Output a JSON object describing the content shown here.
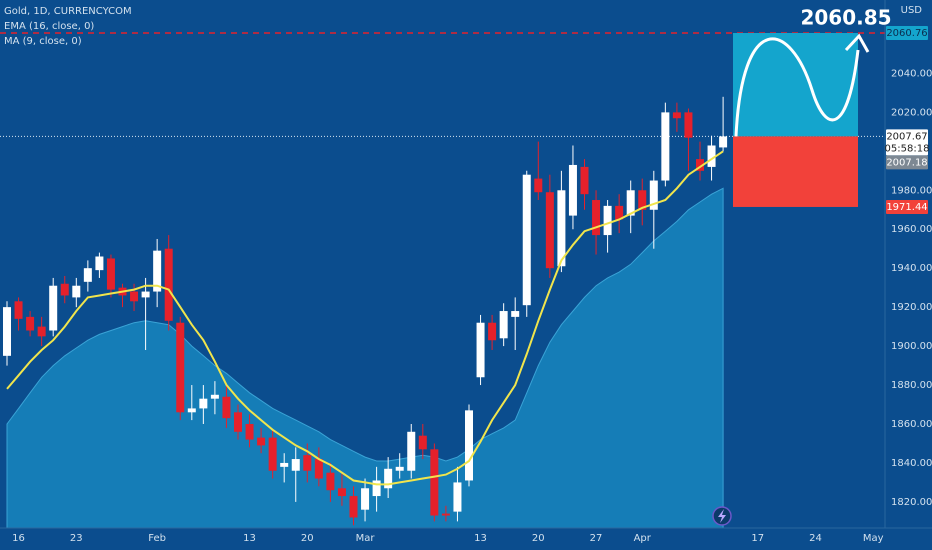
{
  "chart_data": {
    "type": "candlestick",
    "title": "Gold, 1D, CURRENCYCOM",
    "currency": "USD",
    "up_color": "#ffffff",
    "down_color": "#e5212b",
    "categories": [
      null,
      "16",
      null,
      null,
      null,
      null,
      "23",
      null,
      null,
      null,
      null,
      null,
      null,
      "Feb",
      null,
      null,
      null,
      null,
      null,
      null,
      null,
      "13",
      null,
      null,
      null,
      null,
      "20",
      null,
      null,
      null,
      null,
      "Mar",
      null,
      null,
      null,
      null,
      null,
      null,
      null,
      null,
      null,
      "13",
      null,
      null,
      null,
      null,
      "20",
      null,
      null,
      null,
      null,
      "27",
      null,
      null,
      null,
      "Apr",
      null,
      null,
      null,
      null,
      null,
      null,
      null,
      null,
      null,
      "17",
      null,
      null,
      null,
      null,
      "24",
      null,
      null,
      null,
      null,
      "May"
    ],
    "open": [
      1895,
      1923,
      1915,
      1910,
      1908,
      1932,
      1925,
      1933,
      1939,
      1945,
      1930,
      1928,
      1925,
      1928,
      1950,
      1912,
      1866,
      1868,
      1873,
      1874,
      1866,
      1860,
      1853,
      1853,
      1838,
      1836,
      1844,
      1842,
      1835,
      1827,
      1823,
      1816,
      1823,
      1827,
      1836,
      1836,
      1854,
      1847,
      1814,
      1815,
      1831,
      1884,
      1912,
      1904,
      1915,
      1921,
      1986,
      1979,
      1941,
      1967,
      1992,
      1975,
      1957,
      1972,
      1967,
      1980,
      1970,
      1985,
      2020,
      2020,
      1996,
      1992,
      2002,
      null,
      null,
      null,
      null,
      null,
      null,
      null,
      null,
      null,
      null,
      null,
      null,
      null
    ],
    "high": [
      1923,
      1925,
      1918,
      1915,
      1935,
      1936,
      1935,
      1944,
      1948,
      1947,
      1932,
      1932,
      1935,
      1955,
      1957,
      1915,
      1880,
      1880,
      1882,
      1880,
      1870,
      1865,
      1858,
      1857,
      1845,
      1848,
      1850,
      1848,
      1840,
      1835,
      1828,
      1832,
      1838,
      1843,
      1845,
      1860,
      1860,
      1850,
      1818,
      1838,
      1870,
      1916,
      1916,
      1922,
      1925,
      1990,
      2005,
      1988,
      1990,
      2003,
      1996,
      1980,
      1975,
      1978,
      1985,
      1986,
      1990,
      2025,
      2025,
      2022,
      2005,
      2008,
      2028,
      null,
      null,
      null,
      null,
      null,
      null,
      null,
      null,
      null,
      null,
      null,
      null,
      null
    ],
    "low": [
      1890,
      1908,
      1905,
      1900,
      1905,
      1922,
      1920,
      1928,
      1935,
      1925,
      1920,
      1918,
      1898,
      1920,
      1908,
      1862,
      1862,
      1860,
      1865,
      1858,
      1852,
      1848,
      1845,
      1832,
      1830,
      1820,
      1830,
      1828,
      1820,
      1818,
      1808,
      1810,
      1815,
      1822,
      1832,
      1832,
      1842,
      1810,
      1810,
      1810,
      1828,
      1880,
      1898,
      1900,
      1898,
      1915,
      1975,
      1935,
      1938,
      1960,
      1970,
      1947,
      1948,
      1958,
      1958,
      1962,
      1950,
      1982,
      2010,
      1990,
      1985,
      1985,
      2000,
      null,
      null,
      null,
      null,
      null,
      null,
      null,
      null,
      null,
      null,
      null,
      null,
      null
    ],
    "close": [
      1920,
      1914,
      1908,
      1905,
      1931,
      1926,
      1931,
      1940,
      1946,
      1929,
      1926,
      1923,
      1928,
      1949,
      1913,
      1866,
      1868,
      1873,
      1875,
      1863,
      1856,
      1852,
      1849,
      1836,
      1840,
      1842,
      1836,
      1832,
      1826,
      1823,
      1812,
      1827,
      1831,
      1837,
      1838,
      1856,
      1847,
      1813,
      1813,
      1830,
      1867,
      1912,
      1903,
      1918,
      1918,
      1988,
      1979,
      1940,
      1980,
      1993,
      1978,
      1957,
      1972,
      1965,
      1980,
      1970,
      1985,
      2020,
      2017,
      2007,
      1990,
      2003,
      2007.67,
      null,
      null,
      null,
      null,
      null,
      null,
      null,
      null,
      null,
      null,
      null,
      null,
      null
    ],
    "series": [
      {
        "name": "EMA (16, close, 0)",
        "color": "#f1e54c",
        "values": [
          1878,
          1885,
          1892,
          1898,
          1903,
          1910,
          1918,
          1925,
          1926,
          1927,
          1928,
          1929,
          1931,
          1931,
          1929,
          1920,
          1911,
          1903,
          1892,
          1880,
          1873,
          1867,
          1862,
          1857,
          1853,
          1849,
          1846,
          1842,
          1839,
          1835,
          1831,
          1830,
          1829,
          1829,
          1830,
          1831,
          1832,
          1833,
          1834,
          1837,
          1841,
          1851,
          1862,
          1871,
          1880,
          1896,
          1913,
          1929,
          1944,
          1952,
          1959,
          1961,
          1963,
          1965,
          1968,
          1971,
          1973,
          1975,
          1981,
          1988,
          1992,
          1996,
          2000,
          null,
          null,
          null,
          null,
          null,
          null,
          null,
          null,
          null,
          null,
          null,
          null,
          null
        ]
      },
      {
        "name": "MA (9, close, 0)",
        "color": "#1786be",
        "values": [
          1860,
          1868,
          1876,
          1884,
          1890,
          1895,
          1899,
          1903,
          1906,
          1908,
          1910,
          1912,
          1913,
          1912,
          1911,
          1906,
          1900,
          1895,
          1890,
          1886,
          1881,
          1876,
          1872,
          1868,
          1865,
          1862,
          1859,
          1856,
          1852,
          1849,
          1846,
          1843,
          1841,
          1841,
          1842,
          1843,
          1844,
          1843,
          1841,
          1843,
          1847,
          1852,
          1855,
          1858,
          1862,
          1876,
          1890,
          1902,
          1911,
          1918,
          1925,
          1931,
          1935,
          1938,
          1942,
          1948,
          1954,
          1959,
          1964,
          1970,
          1974,
          1978,
          1981,
          null,
          null,
          null,
          null,
          null,
          null,
          null,
          null,
          null,
          null,
          null,
          null,
          null
        ]
      }
    ],
    "ylim": [
      1806.6,
      2077.7
    ],
    "yticks": [
      {
        "value": 1820,
        "label": "1820.00"
      },
      {
        "value": 1840,
        "label": "1840.00"
      },
      {
        "value": 1860,
        "label": "1860.00"
      },
      {
        "value": 1880,
        "label": "1880.00"
      },
      {
        "value": 1900,
        "label": "1900.00"
      },
      {
        "value": 1920,
        "label": "1920.00"
      },
      {
        "value": 1940,
        "label": "1940.00"
      },
      {
        "value": 1960,
        "label": "1960.00"
      },
      {
        "value": 1980,
        "label": "1980.00"
      },
      {
        "value": 2020,
        "label": "2020.00"
      },
      {
        "value": 2040,
        "label": "2040.00"
      }
    ],
    "target": 2060.76,
    "last": 2007.67,
    "countdown": "05:58:18",
    "indicator": 2007.18,
    "stop": 1971.44,
    "projection": 2060.85
  }
}
